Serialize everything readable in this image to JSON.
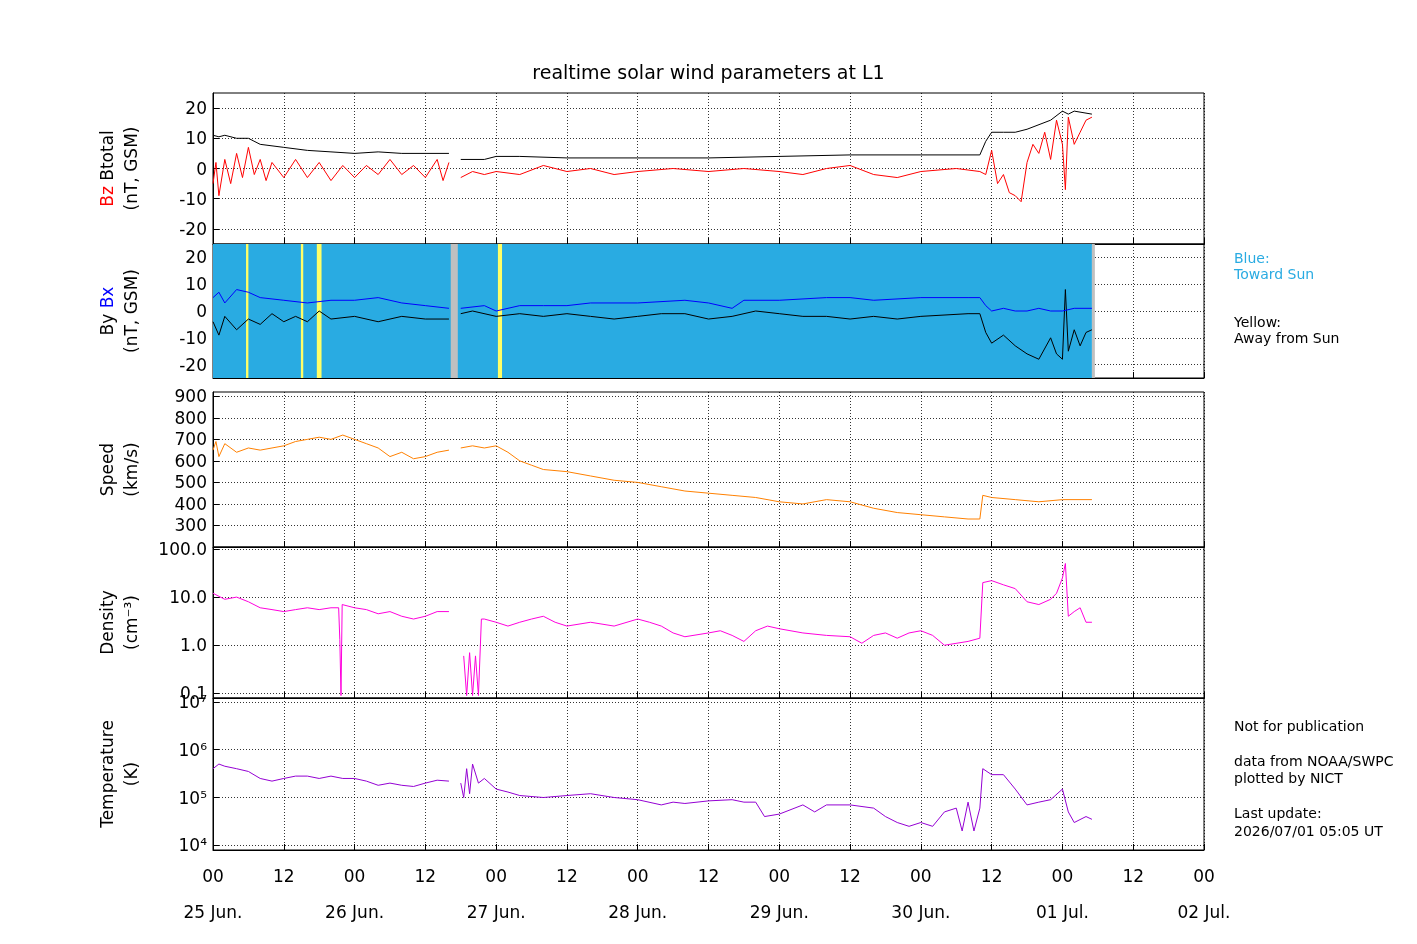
{
  "chart_data": [
    {
      "type": "line",
      "title": "realtime solar wind parameters at L1",
      "ylabel": "(nT, GSM)",
      "xlim": [
        "2026-06-25T00:00",
        "2026-07-02T00:00"
      ],
      "ylim": [
        -25,
        25
      ],
      "yticks": [
        -20,
        -10,
        0,
        10,
        20
      ],
      "tick_labels": "y",
      "grid": true,
      "xticks": [
        "2026-06-25T00:00",
        "2026-06-25T12:00",
        "2026-06-26T00:00",
        "2026-06-26T12:00",
        "2026-06-27T00:00",
        "2026-06-27T12:00",
        "2026-06-28T00:00",
        "2026-06-28T12:00",
        "2026-06-29T00:00",
        "2026-06-29T12:00",
        "2026-06-30T00:00",
        "2026-06-30T12:00",
        "2026-07-01T00:00",
        "2026-07-01T12:00",
        "2026-07-02T00:00"
      ],
      "series": [
        {
          "name": "Bz",
          "color": "#ff0000",
          "x": [
            "2026-06-25T00:00",
            "2026-06-25T00:30",
            "2026-06-25T01:00",
            "2026-06-25T02:00",
            "2026-06-25T03:00",
            "2026-06-25T04:00",
            "2026-06-25T05:00",
            "2026-06-25T06:00",
            "2026-06-25T07:00",
            "2026-06-25T08:00",
            "2026-06-25T09:00",
            "2026-06-25T10:00",
            "2026-06-25T12:00",
            "2026-06-25T14:00",
            "2026-06-25T16:00",
            "2026-06-25T18:00",
            "2026-06-25T20:00",
            "2026-06-25T22:00",
            "2026-06-26T00:00",
            "2026-06-26T02:00",
            "2026-06-26T04:00",
            "2026-06-26T06:00",
            "2026-06-26T08:00",
            "2026-06-26T10:00",
            "2026-06-26T12:00",
            "2026-06-26T14:00",
            "2026-06-26T15:00",
            "2026-06-26T16:00",
            "2026-06-26T16:30",
            "2026-06-26T18:00",
            "2026-06-26T20:00",
            "2026-06-26T22:00",
            "2026-06-27T00:00",
            "2026-06-27T04:00",
            "2026-06-27T08:00",
            "2026-06-27T12:00",
            "2026-06-27T16:00",
            "2026-06-27T20:00",
            "2026-06-28T00:00",
            "2026-06-28T06:00",
            "2026-06-28T12:00",
            "2026-06-28T18:00",
            "2026-06-29T00:00",
            "2026-06-29T04:00",
            "2026-06-29T08:00",
            "2026-06-29T12:00",
            "2026-06-29T16:00",
            "2026-06-29T20:00",
            "2026-06-30T00:00",
            "2026-06-30T06:00",
            "2026-06-30T10:00",
            "2026-06-30T11:00",
            "2026-06-30T12:00",
            "2026-06-30T13:00",
            "2026-06-30T14:00",
            "2026-06-30T15:00",
            "2026-06-30T16:00",
            "2026-06-30T17:00",
            "2026-06-30T18:00",
            "2026-06-30T19:00",
            "2026-06-30T20:00",
            "2026-06-30T21:00",
            "2026-06-30T22:00",
            "2026-06-30T23:00",
            "2026-07-01T00:00",
            "2026-07-01T00:30",
            "2026-07-01T01:00",
            "2026-07-01T02:00",
            "2026-07-01T03:00",
            "2026-07-01T04:00",
            "2026-07-01T05:00"
          ],
          "values": [
            -5,
            2,
            -9,
            3,
            -5,
            5,
            -3,
            7,
            -2,
            3,
            -4,
            2,
            -3,
            3,
            -3,
            2,
            -4,
            1,
            -3,
            1,
            -2,
            3,
            -2,
            1,
            -3,
            3,
            -4,
            2,
            null,
            -3,
            -1,
            -2,
            -1,
            -2,
            1,
            -1,
            0,
            -2,
            -1,
            0,
            -1,
            0,
            -1,
            -2,
            0,
            1,
            -2,
            -3,
            -1,
            0,
            -1,
            -2,
            6,
            -5,
            -2,
            -8,
            -9,
            -11,
            2,
            8,
            5,
            12,
            3,
            16,
            8,
            -7,
            17,
            8,
            12,
            16,
            17
          ]
        },
        {
          "name": "Btotal",
          "color": "#000000",
          "x": [
            "2026-06-25T00:00",
            "2026-06-25T01:00",
            "2026-06-25T02:00",
            "2026-06-25T04:00",
            "2026-06-25T06:00",
            "2026-06-25T08:00",
            "2026-06-25T12:00",
            "2026-06-25T16:00",
            "2026-06-25T20:00",
            "2026-06-26T00:00",
            "2026-06-26T04:00",
            "2026-06-26T08:00",
            "2026-06-26T12:00",
            "2026-06-26T16:00",
            "2026-06-26T16:30",
            "2026-06-26T18:00",
            "2026-06-26T22:00",
            "2026-06-27T00:00",
            "2026-06-27T04:00",
            "2026-06-27T12:00",
            "2026-06-28T00:00",
            "2026-06-28T12:00",
            "2026-06-29T00:00",
            "2026-06-29T12:00",
            "2026-06-30T00:00",
            "2026-06-30T10:00",
            "2026-06-30T11:00",
            "2026-06-30T12:00",
            "2026-06-30T14:00",
            "2026-06-30T16:00",
            "2026-06-30T18:00",
            "2026-06-30T22:00",
            "2026-07-01T00:00",
            "2026-07-01T01:00",
            "2026-07-01T02:00",
            "2026-07-01T05:00"
          ],
          "values": [
            11,
            10.5,
            11,
            10,
            10,
            8,
            7,
            6,
            5.5,
            5,
            5.5,
            5,
            5,
            5,
            null,
            3,
            3,
            4,
            4,
            3.5,
            3.5,
            3.5,
            4,
            4.5,
            4.5,
            4.5,
            9,
            12,
            12,
            12,
            13,
            16,
            19,
            18,
            19,
            18
          ]
        }
      ]
    },
    {
      "type": "line",
      "ylabel": "(nT, GSM)",
      "xlim": [
        "2026-06-25T00:00",
        "2026-07-02T00:00"
      ],
      "ylim": [
        -25,
        25
      ],
      "yticks": [
        -20,
        -10,
        0,
        10,
        20
      ],
      "tick_labels": "y",
      "grid": true,
      "xticks": [
        "2026-06-25T00:00",
        "2026-06-25T12:00",
        "2026-06-26T00:00",
        "2026-06-26T12:00",
        "2026-06-27T00:00",
        "2026-06-27T12:00",
        "2026-06-28T00:00",
        "2026-06-28T12:00",
        "2026-06-29T00:00",
        "2026-06-29T12:00",
        "2026-06-30T00:00",
        "2026-06-30T12:00",
        "2026-07-01T00:00",
        "2026-07-01T12:00",
        "2026-07-02T00:00"
      ],
      "bands": [
        {
          "axis": "x",
          "from": "2026-06-25T00:00",
          "to": "2026-07-01T05:00",
          "color": "#29abe2"
        },
        {
          "axis": "x",
          "from": "2026-06-26T16:18",
          "to": "2026-06-26T17:30",
          "color": "#c0c0c0"
        },
        {
          "axis": "x",
          "from": "2026-07-01T05:00",
          "to": "2026-07-01T05:30",
          "color": "#c0c0c0"
        },
        {
          "axis": "x",
          "from": "2026-06-25T05:36",
          "to": "2026-06-25T06:00",
          "color": "#ffff66"
        },
        {
          "axis": "x",
          "from": "2026-06-25T14:54",
          "to": "2026-06-25T15:18",
          "color": "#ffff66"
        },
        {
          "axis": "x",
          "from": "2026-06-25T17:36",
          "to": "2026-06-25T18:24",
          "color": "#ffff66"
        },
        {
          "axis": "x",
          "from": "2026-06-27T00:18",
          "to": "2026-06-27T01:00",
          "color": "#ffff66"
        }
      ],
      "annotations": [
        "Blue:\nToward Sun",
        "Yellow:\nAway from Sun"
      ],
      "series": [
        {
          "name": "By",
          "color": "#000000",
          "x": [
            "2026-06-25T00:00",
            "2026-06-25T01:00",
            "2026-06-25T02:00",
            "2026-06-25T04:00",
            "2026-06-25T06:00",
            "2026-06-25T08:00",
            "2026-06-25T10:00",
            "2026-06-25T12:00",
            "2026-06-25T14:00",
            "2026-06-25T16:00",
            "2026-06-25T18:00",
            "2026-06-25T20:00",
            "2026-06-26T00:00",
            "2026-06-26T04:00",
            "2026-06-26T08:00",
            "2026-06-26T12:00",
            "2026-06-26T16:00",
            "2026-06-26T16:30",
            "2026-06-26T18:00",
            "2026-06-26T20:00",
            "2026-06-27T00:00",
            "2026-06-27T04:00",
            "2026-06-27T08:00",
            "2026-06-27T12:00",
            "2026-06-27T16:00",
            "2026-06-27T20:00",
            "2026-06-28T00:00",
            "2026-06-28T04:00",
            "2026-06-28T08:00",
            "2026-06-28T12:00",
            "2026-06-28T16:00",
            "2026-06-28T20:00",
            "2026-06-29T00:00",
            "2026-06-29T04:00",
            "2026-06-29T08:00",
            "2026-06-29T12:00",
            "2026-06-29T16:00",
            "2026-06-29T20:00",
            "2026-06-30T00:00",
            "2026-06-30T08:00",
            "2026-06-30T10:00",
            "2026-06-30T11:00",
            "2026-06-30T12:00",
            "2026-06-30T14:00",
            "2026-06-30T16:00",
            "2026-06-30T18:00",
            "2026-06-30T20:00",
            "2026-06-30T22:00",
            "2026-06-30T23:00",
            "2026-07-01T00:00",
            "2026-07-01T00:30",
            "2026-07-01T01:00",
            "2026-07-01T02:00",
            "2026-07-01T03:00",
            "2026-07-01T04:00",
            "2026-07-01T05:00"
          ],
          "values": [
            -4,
            -9,
            -2,
            -7,
            -3,
            -5,
            -1,
            -4,
            -2,
            -4,
            0,
            -3,
            -2,
            -4,
            -2,
            -3,
            -3,
            null,
            -1,
            0,
            -2,
            -1,
            -2,
            -1,
            -2,
            -3,
            -2,
            -1,
            -1,
            -3,
            -2,
            0,
            -1,
            -2,
            -2,
            -3,
            -2,
            -3,
            -2,
            -1,
            -1,
            -8,
            -12,
            -9,
            -13,
            -16,
            -18,
            -10,
            -16,
            -18,
            8,
            -15,
            -7,
            -13,
            -8,
            -7
          ]
        },
        {
          "name": "Bx",
          "color": "#0000ff",
          "x": [
            "2026-06-25T00:00",
            "2026-06-25T01:00",
            "2026-06-25T02:00",
            "2026-06-25T04:00",
            "2026-06-25T06:00",
            "2026-06-25T08:00",
            "2026-06-25T12:00",
            "2026-06-25T16:00",
            "2026-06-25T20:00",
            "2026-06-26T00:00",
            "2026-06-26T04:00",
            "2026-06-26T08:00",
            "2026-06-26T12:00",
            "2026-06-26T16:00",
            "2026-06-26T16:30",
            "2026-06-26T18:00",
            "2026-06-26T22:00",
            "2026-06-27T00:00",
            "2026-06-27T04:00",
            "2026-06-27T08:00",
            "2026-06-27T12:00",
            "2026-06-27T16:00",
            "2026-06-28T00:00",
            "2026-06-28T08:00",
            "2026-06-28T12:00",
            "2026-06-28T16:00",
            "2026-06-28T18:00",
            "2026-06-29T00:00",
            "2026-06-29T08:00",
            "2026-06-29T12:00",
            "2026-06-29T16:00",
            "2026-06-30T00:00",
            "2026-06-30T08:00",
            "2026-06-30T10:00",
            "2026-06-30T11:00",
            "2026-06-30T12:00",
            "2026-06-30T14:00",
            "2026-06-30T16:00",
            "2026-06-30T18:00",
            "2026-06-30T20:00",
            "2026-06-30T22:00",
            "2026-07-01T00:00",
            "2026-07-01T02:00",
            "2026-07-01T05:00"
          ],
          "values": [
            5,
            7,
            3,
            8,
            7,
            5,
            4,
            3,
            4,
            4,
            5,
            3,
            2,
            1,
            null,
            1,
            2,
            0,
            2,
            2,
            2,
            3,
            3,
            4,
            3,
            1,
            4,
            4,
            5,
            5,
            4,
            5,
            5,
            5,
            2,
            0,
            1,
            0,
            0,
            1,
            0,
            0,
            1,
            1
          ]
        }
      ]
    },
    {
      "type": "line",
      "ylabel": "Speed\n(km/s)",
      "xlim": [
        "2026-06-25T00:00",
        "2026-07-02T00:00"
      ],
      "ylim": [
        200,
        920
      ],
      "yticks": [
        300,
        400,
        500,
        600,
        700,
        800,
        900
      ],
      "tick_labels": "y",
      "grid": true,
      "xticks": [
        "2026-06-25T00:00",
        "2026-06-25T12:00",
        "2026-06-26T00:00",
        "2026-06-26T12:00",
        "2026-06-27T00:00",
        "2026-06-27T12:00",
        "2026-06-28T00:00",
        "2026-06-28T12:00",
        "2026-06-29T00:00",
        "2026-06-29T12:00",
        "2026-06-30T00:00",
        "2026-06-30T12:00",
        "2026-07-01T00:00",
        "2026-07-01T12:00",
        "2026-07-02T00:00"
      ],
      "series": [
        {
          "color": "#ff8000",
          "x": [
            "2026-06-25T00:00",
            "2026-06-25T00:30",
            "2026-06-25T01:00",
            "2026-06-25T02:00",
            "2026-06-25T04:00",
            "2026-06-25T06:00",
            "2026-06-25T08:00",
            "2026-06-25T10:00",
            "2026-06-25T12:00",
            "2026-06-25T14:00",
            "2026-06-25T16:00",
            "2026-06-25T18:00",
            "2026-06-25T20:00",
            "2026-06-25T22:00",
            "2026-06-26T00:00",
            "2026-06-26T02:00",
            "2026-06-26T04:00",
            "2026-06-26T06:00",
            "2026-06-26T08:00",
            "2026-06-26T10:00",
            "2026-06-26T12:00",
            "2026-06-26T14:00",
            "2026-06-26T16:00",
            "2026-06-26T16:30",
            "2026-06-26T18:00",
            "2026-06-26T20:00",
            "2026-06-26T22:00",
            "2026-06-27T00:00",
            "2026-06-27T02:00",
            "2026-06-27T04:00",
            "2026-06-27T06:00",
            "2026-06-27T08:00",
            "2026-06-27T12:00",
            "2026-06-27T16:00",
            "2026-06-27T20:00",
            "2026-06-28T00:00",
            "2026-06-28T04:00",
            "2026-06-28T08:00",
            "2026-06-28T12:00",
            "2026-06-28T16:00",
            "2026-06-28T20:00",
            "2026-06-29T00:00",
            "2026-06-29T04:00",
            "2026-06-29T08:00",
            "2026-06-29T12:00",
            "2026-06-29T16:00",
            "2026-06-29T20:00",
            "2026-06-30T00:00",
            "2026-06-30T04:00",
            "2026-06-30T08:00",
            "2026-06-30T10:00",
            "2026-06-30T10:30",
            "2026-06-30T12:00",
            "2026-06-30T16:00",
            "2026-06-30T20:00",
            "2026-07-01T00:00",
            "2026-07-01T05:00"
          ],
          "values": [
            650,
            690,
            620,
            680,
            640,
            660,
            650,
            660,
            670,
            690,
            700,
            710,
            700,
            720,
            700,
            680,
            660,
            620,
            640,
            610,
            620,
            640,
            650,
            null,
            660,
            670,
            660,
            670,
            640,
            600,
            580,
            560,
            550,
            530,
            510,
            500,
            480,
            460,
            450,
            440,
            430,
            410,
            400,
            420,
            410,
            380,
            360,
            350,
            340,
            330,
            330,
            440,
            430,
            420,
            410,
            420,
            420
          ]
        }
      ]
    },
    {
      "type": "line",
      "ylabel": "Density\n(cm⁻³)",
      "log": true,
      "xlim": [
        "2026-06-25T00:00",
        "2026-07-02T00:00"
      ],
      "ylim": [
        0.08,
        110
      ],
      "yticks": [
        {
          "value": 0.1,
          "label": "0.1"
        },
        {
          "value": 1,
          "label": "1.0"
        },
        {
          "value": 10,
          "label": "10.0"
        },
        {
          "value": 100,
          "label": "100.0"
        }
      ],
      "tick_labels": "y",
      "grid": true,
      "xticks": [
        "2026-06-25T00:00",
        "2026-06-25T12:00",
        "2026-06-26T00:00",
        "2026-06-26T12:00",
        "2026-06-27T00:00",
        "2026-06-27T12:00",
        "2026-06-28T00:00",
        "2026-06-28T12:00",
        "2026-06-29T00:00",
        "2026-06-29T12:00",
        "2026-06-30T00:00",
        "2026-06-30T12:00",
        "2026-07-01T00:00",
        "2026-07-01T12:00",
        "2026-07-02T00:00"
      ],
      "series": [
        {
          "color": "#ff00dd",
          "x": [
            "2026-06-25T00:00",
            "2026-06-25T02:00",
            "2026-06-25T04:00",
            "2026-06-25T06:00",
            "2026-06-25T08:00",
            "2026-06-25T10:00",
            "2026-06-25T12:00",
            "2026-06-25T14:00",
            "2026-06-25T16:00",
            "2026-06-25T18:00",
            "2026-06-25T20:00",
            "2026-06-25T21:18",
            "2026-06-25T21:30",
            "2026-06-25T21:42",
            "2026-06-25T21:54",
            "2026-06-26T00:00",
            "2026-06-26T02:00",
            "2026-06-26T04:00",
            "2026-06-26T06:00",
            "2026-06-26T08:00",
            "2026-06-26T10:00",
            "2026-06-26T12:00",
            "2026-06-26T14:00",
            "2026-06-26T16:00",
            "2026-06-26T16:30",
            "2026-06-26T18:30",
            "2026-06-26T19:00",
            "2026-06-26T19:30",
            "2026-06-26T20:00",
            "2026-06-26T20:30",
            "2026-06-26T21:00",
            "2026-06-26T21:30",
            "2026-06-26T22:00",
            "2026-06-27T00:00",
            "2026-06-27T02:00",
            "2026-06-27T04:00",
            "2026-06-27T06:00",
            "2026-06-27T08:00",
            "2026-06-27T10:00",
            "2026-06-27T12:00",
            "2026-06-27T16:00",
            "2026-06-27T20:00",
            "2026-06-28T00:00",
            "2026-06-28T02:00",
            "2026-06-28T04:00",
            "2026-06-28T06:00",
            "2026-06-28T08:00",
            "2026-06-28T12:00",
            "2026-06-28T14:00",
            "2026-06-28T16:00",
            "2026-06-28T18:00",
            "2026-06-28T20:00",
            "2026-06-28T22:00",
            "2026-06-29T00:00",
            "2026-06-29T04:00",
            "2026-06-29T08:00",
            "2026-06-29T12:00",
            "2026-06-29T14:00",
            "2026-06-29T16:00",
            "2026-06-29T18:00",
            "2026-06-29T20:00",
            "2026-06-29T22:00",
            "2026-06-30T00:00",
            "2026-06-30T02:00",
            "2026-06-30T04:00",
            "2026-06-30T08:00",
            "2026-06-30T10:00",
            "2026-06-30T10:30",
            "2026-06-30T12:00",
            "2026-06-30T14:00",
            "2026-06-30T16:00",
            "2026-06-30T18:00",
            "2026-06-30T20:00",
            "2026-06-30T22:00",
            "2026-06-30T23:00",
            "2026-07-01T00:00",
            "2026-07-01T00:30",
            "2026-07-01T01:00",
            "2026-07-01T02:00",
            "2026-07-01T03:00",
            "2026-07-01T04:00",
            "2026-07-01T05:00"
          ],
          "values": [
            12,
            9,
            10,
            8,
            6,
            5.5,
            5,
            5.5,
            6,
            5.5,
            6,
            6,
            1.3,
            0.09,
            7,
            6,
            5.5,
            4.5,
            5,
            4,
            3.5,
            4,
            5,
            5,
            null,
            0.6,
            0.09,
            0.7,
            0.09,
            0.6,
            0.09,
            3.5,
            3.5,
            3,
            2.5,
            3,
            3.5,
            4,
            3,
            2.5,
            3,
            2.5,
            3.5,
            3,
            2.5,
            1.8,
            1.5,
            1.8,
            2,
            1.6,
            1.2,
            2,
            2.5,
            2.2,
            1.8,
            1.6,
            1.5,
            1.1,
            1.6,
            1.8,
            1.4,
            1.8,
            2,
            1.6,
            1,
            1.2,
            1.4,
            20,
            22,
            18,
            15,
            8,
            7,
            9,
            12,
            25,
            50,
            4,
            5,
            6,
            3,
            3
          ]
        }
      ]
    },
    {
      "type": "line",
      "ylabel": "Temperature\n(K)",
      "log": true,
      "xlim": [
        "2026-06-25T00:00",
        "2026-07-02T00:00"
      ],
      "ylim": [
        8000,
        12000000
      ],
      "yticks": [
        {
          "value": 10000,
          "label": "10⁴"
        },
        {
          "value": 100000,
          "label": "10⁵"
        },
        {
          "value": 1000000,
          "label": "10⁶"
        },
        {
          "value": 10000000,
          "label": "10⁷"
        }
      ],
      "grid": true,
      "xticks": [
        {
          "value": "2026-06-25T00:00",
          "label": "00\n25 Jun."
        },
        {
          "value": "2026-06-25T12:00",
          "label": "12"
        },
        {
          "value": "2026-06-26T00:00",
          "label": "00\n26 Jun."
        },
        {
          "value": "2026-06-26T12:00",
          "label": "12"
        },
        {
          "value": "2026-06-27T00:00",
          "label": "00\n27 Jun."
        },
        {
          "value": "2026-06-27T12:00",
          "label": "12"
        },
        {
          "value": "2026-06-28T00:00",
          "label": "00\n28 Jun."
        },
        {
          "value": "2026-06-28T12:00",
          "label": "12"
        },
        {
          "value": "2026-06-29T00:00",
          "label": "00\n29 Jun."
        },
        {
          "value": "2026-06-29T12:00",
          "label": "12"
        },
        {
          "value": "2026-06-30T00:00",
          "label": "00\n30 Jun."
        },
        {
          "value": "2026-06-30T12:00",
          "label": "12"
        },
        {
          "value": "2026-07-01T00:00",
          "label": "00\n01 Jul."
        },
        {
          "value": "2026-07-01T12:00",
          "label": "12"
        },
        {
          "value": "2026-07-02T00:00",
          "label": "00\n02 Jul."
        }
      ],
      "annotations": [
        "Not for publication",
        "data from NOAA/SWPC\nplotted by NICT",
        "Last update:\n2026/07/01 05:05 UT"
      ],
      "series": [
        {
          "color": "#9400d3",
          "x": [
            "2026-06-25T00:00",
            "2026-06-25T01:00",
            "2026-06-25T02:00",
            "2026-06-25T04:00",
            "2026-06-25T06:00",
            "2026-06-25T08:00",
            "2026-06-25T10:00",
            "2026-06-25T12:00",
            "2026-06-25T14:00",
            "2026-06-25T16:00",
            "2026-06-25T18:00",
            "2026-06-25T20:00",
            "2026-06-25T22:00",
            "2026-06-26T00:00",
            "2026-06-26T02:00",
            "2026-06-26T04:00",
            "2026-06-26T06:00",
            "2026-06-26T08:00",
            "2026-06-26T10:00",
            "2026-06-26T12:00",
            "2026-06-26T14:00",
            "2026-06-26T16:00",
            "2026-06-26T16:30",
            "2026-06-26T18:00",
            "2026-06-26T18:30",
            "2026-06-26T19:00",
            "2026-06-26T19:30",
            "2026-06-26T20:00",
            "2026-06-26T21:00",
            "2026-06-26T22:00",
            "2026-06-27T00:00",
            "2026-06-27T02:00",
            "2026-06-27T04:00",
            "2026-06-27T08:00",
            "2026-06-27T12:00",
            "2026-06-27T16:00",
            "2026-06-27T20:00",
            "2026-06-28T00:00",
            "2026-06-28T04:00",
            "2026-06-28T06:00",
            "2026-06-28T08:00",
            "2026-06-28T12:00",
            "2026-06-28T16:00",
            "2026-06-28T18:00",
            "2026-06-28T20:00",
            "2026-06-28T21:30",
            "2026-06-29T00:00",
            "2026-06-29T04:00",
            "2026-06-29T06:00",
            "2026-06-29T08:00",
            "2026-06-29T12:00",
            "2026-06-29T16:00",
            "2026-06-29T18:00",
            "2026-06-29T20:00",
            "2026-06-29T22:00",
            "2026-06-30T00:00",
            "2026-06-30T02:00",
            "2026-06-30T04:00",
            "2026-06-30T06:00",
            "2026-06-30T07:00",
            "2026-06-30T08:00",
            "2026-06-30T09:00",
            "2026-06-30T10:00",
            "2026-06-30T10:30",
            "2026-06-30T12:00",
            "2026-06-30T14:00",
            "2026-06-30T16:00",
            "2026-06-30T18:00",
            "2026-06-30T20:00",
            "2026-06-30T22:00",
            "2026-07-01T00:00",
            "2026-07-01T01:00",
            "2026-07-01T02:00",
            "2026-07-01T04:00",
            "2026-07-01T05:00"
          ],
          "values": [
            400000,
            500000,
            450000,
            400000,
            350000,
            250000,
            220000,
            250000,
            280000,
            280000,
            250000,
            280000,
            250000,
            250000,
            220000,
            180000,
            200000,
            180000,
            170000,
            200000,
            230000,
            220000,
            null,
            200000,
            100000,
            400000,
            120000,
            500000,
            200000,
            250000,
            150000,
            130000,
            110000,
            100000,
            110000,
            120000,
            100000,
            90000,
            70000,
            80000,
            75000,
            85000,
            90000,
            80000,
            80000,
            40000,
            45000,
            70000,
            50000,
            70000,
            70000,
            60000,
            40000,
            30000,
            25000,
            30000,
            25000,
            50000,
            60000,
            20000,
            80000,
            20000,
            60000,
            400000,
            300000,
            300000,
            150000,
            70000,
            80000,
            90000,
            150000,
            50000,
            30000,
            40000,
            35000
          ]
        }
      ]
    }
  ]
}
